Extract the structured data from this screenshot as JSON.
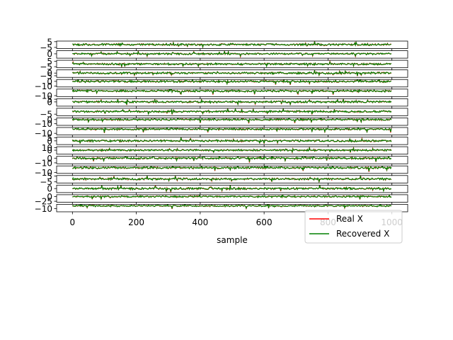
{
  "chart_data": {
    "type": "line",
    "xlabel": "sample",
    "xlim": [
      0,
      1000
    ],
    "x_ticks": [
      0,
      200,
      400,
      600,
      800,
      1000
    ],
    "x_tick_labels": [
      "0",
      "200",
      "400",
      "600",
      "800",
      "1000"
    ],
    "n_samples": 1000,
    "series": [
      {
        "name": "Real X",
        "color": "#ff0000"
      },
      {
        "name": "Recovered X",
        "color": "#008000"
      }
    ],
    "legend": {
      "placement": "lower-right",
      "entries": [
        "Real X",
        "Recovered X"
      ]
    },
    "subplots": [
      {
        "ylim": [
          -7,
          6
        ],
        "y_ticks": [
          5,
          -5
        ],
        "y_tick_labels": [
          "5",
          "−5"
        ],
        "amp": 2.5,
        "spike": 5
      },
      {
        "ylim": [
          -7,
          5
        ],
        "y_ticks": [
          0
        ],
        "y_tick_labels": [
          "0"
        ],
        "amp": 2.0,
        "spike": 4
      },
      {
        "ylim": [
          -7,
          7
        ],
        "y_ticks": [
          5,
          -5
        ],
        "y_tick_labels": [
          "5",
          "−5"
        ],
        "amp": 2.5,
        "spike": 5
      },
      {
        "ylim": [
          -8,
          6
        ],
        "y_ticks": [
          0,
          -5
        ],
        "y_tick_labels": [
          "0",
          "−5"
        ],
        "amp": 2.5,
        "spike": 5
      },
      {
        "ylim": [
          -12,
          4
        ],
        "y_ticks": [
          0,
          -10
        ],
        "y_tick_labels": [
          "0",
          "−10"
        ],
        "amp": 3.0,
        "spike": 8
      },
      {
        "ylim": [
          -12,
          4
        ],
        "y_ticks": [
          -10
        ],
        "y_tick_labels": [
          "−10"
        ],
        "amp": 3.0,
        "spike": 8
      },
      {
        "ylim": [
          -8,
          6
        ],
        "y_ticks": [
          5,
          0
        ],
        "y_tick_labels": [
          "5",
          "0"
        ],
        "amp": 2.5,
        "spike": 5
      },
      {
        "ylim": [
          -8,
          6
        ],
        "y_ticks": [
          -5
        ],
        "y_tick_labels": [
          "−5"
        ],
        "amp": 2.5,
        "spike": 5
      },
      {
        "ylim": [
          -14,
          4
        ],
        "y_ticks": [
          0,
          -10
        ],
        "y_tick_labels": [
          "0",
          "−10"
        ],
        "amp": 3.0,
        "spike": 9
      },
      {
        "ylim": [
          -14,
          4
        ],
        "y_ticks": [
          -10
        ],
        "y_tick_labels": [
          "−10"
        ],
        "amp": 3.0,
        "spike": 9
      },
      {
        "ylim": [
          -6,
          6
        ],
        "y_ticks": [
          5,
          0
        ],
        "y_tick_labels": [
          "5",
          "0"
        ],
        "amp": 2.2,
        "spike": 4
      },
      {
        "ylim": [
          -16,
          14
        ],
        "y_ticks": [
          10,
          0
        ],
        "y_tick_labels": [
          "10",
          "0"
        ],
        "amp": 5.0,
        "spike": 10
      },
      {
        "ylim": [
          -12,
          4
        ],
        "y_ticks": [
          0,
          -10
        ],
        "y_tick_labels": [
          "0",
          "−10"
        ],
        "amp": 3.0,
        "spike": 8
      },
      {
        "ylim": [
          -12,
          4
        ],
        "y_ticks": [
          -10
        ],
        "y_tick_labels": [
          "−10"
        ],
        "amp": 3.0,
        "spike": 8
      },
      {
        "ylim": [
          -7,
          6
        ],
        "y_ticks": [
          5,
          -5
        ],
        "y_tick_labels": [
          "5",
          "−5"
        ],
        "amp": 2.5,
        "spike": 5
      },
      {
        "ylim": [
          -7,
          6
        ],
        "y_ticks": [
          0
        ],
        "y_tick_labels": [
          "0"
        ],
        "amp": 2.5,
        "spike": 5
      },
      {
        "ylim": [
          -30,
          10
        ],
        "y_ticks": [
          0,
          -25
        ],
        "y_tick_labels": [
          "0",
          "−25"
        ],
        "amp": 6.0,
        "spike": 15
      },
      {
        "ylim": [
          -22,
          6
        ],
        "y_ticks": [
          -10
        ],
        "y_tick_labels": [
          "−10"
        ],
        "amp": 4.0,
        "spike": 12
      }
    ]
  }
}
